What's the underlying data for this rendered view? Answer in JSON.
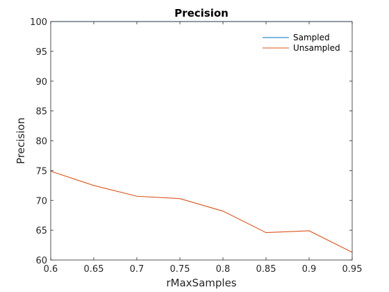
{
  "chart_data": {
    "type": "line",
    "title": "Precision",
    "xlabel": "rMaxSamples",
    "ylabel": "Precision",
    "xlim": [
      0.6,
      0.95
    ],
    "ylim": [
      60,
      100
    ],
    "x_ticks": [
      "0.6",
      "0.65",
      "0.7",
      "0.75",
      "0.8",
      "0.85",
      "0.9",
      "0.95"
    ],
    "y_ticks": [
      "60",
      "65",
      "70",
      "75",
      "80",
      "85",
      "90",
      "95",
      "100"
    ],
    "x": [
      0.6,
      0.65,
      0.7,
      0.75,
      0.8,
      0.85,
      0.9,
      0.95
    ],
    "series": [
      {
        "name": "Sampled",
        "color": "#0072bd",
        "values": [
          100,
          100,
          100,
          100,
          100,
          100,
          100,
          100
        ]
      },
      {
        "name": "Unsampled",
        "color": "#d95319",
        "values": [
          74.9,
          72.5,
          70.7,
          70.3,
          68.2,
          64.6,
          64.9,
          61.3
        ]
      }
    ],
    "grid": false,
    "legend_position": "top-right"
  }
}
